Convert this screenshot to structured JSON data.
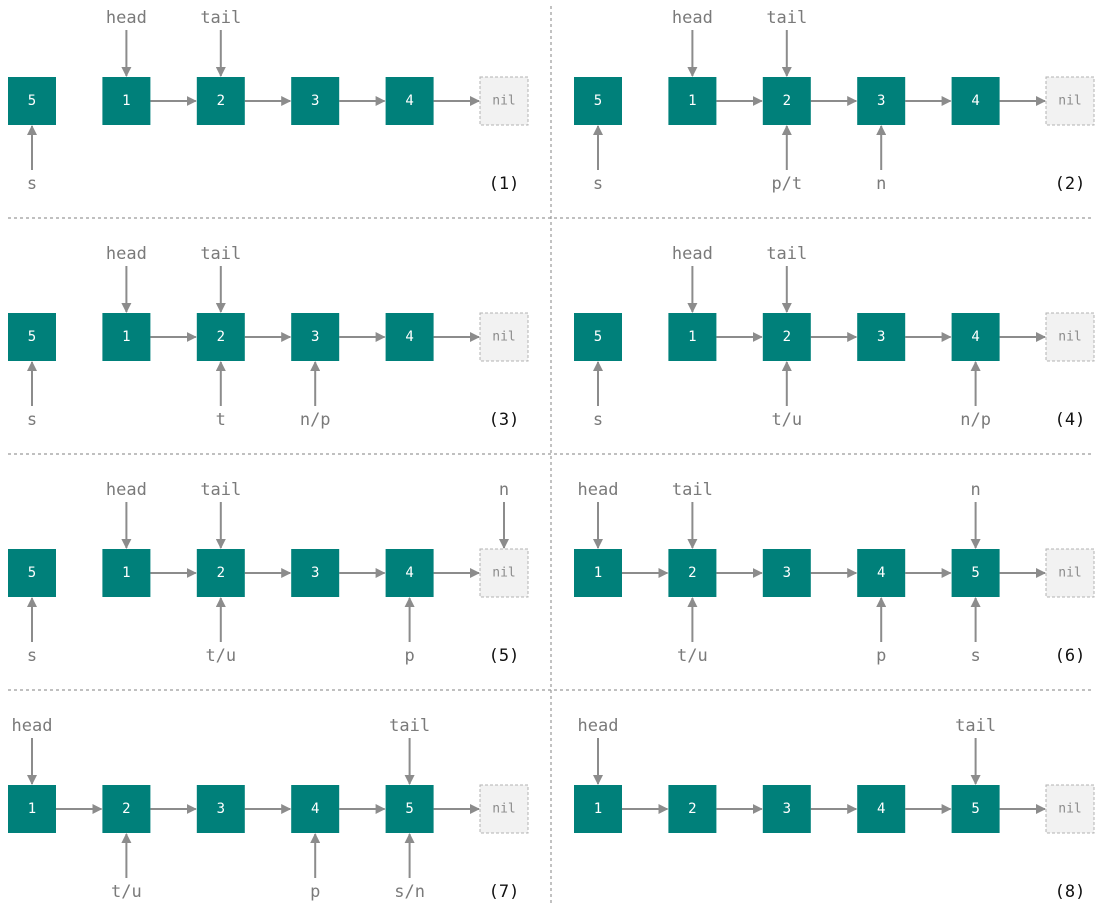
{
  "diagram": {
    "colors": {
      "node_fill": "#00807a",
      "node_text": "#ffffff",
      "nil_fill": "#f2f2f2",
      "nil_border": "#b3b3b3",
      "nil_text": "#8c8c8c",
      "pointer_text": "#7a7a7a",
      "arrow": "#8c8c8c",
      "step_label": "#111111"
    },
    "nil_label": "nil",
    "panels": [
      {
        "step": "(1)",
        "nodes": [
          "5",
          "1",
          "2",
          "3",
          "4"
        ],
        "links": [
          [
            1,
            2
          ],
          [
            2,
            3
          ],
          [
            3,
            4
          ],
          [
            4,
            5
          ]
        ],
        "pointers_above": [
          {
            "node": 1,
            "label": "head"
          },
          {
            "node": 2,
            "label": "tail"
          }
        ],
        "pointers_below": [
          {
            "node": 0,
            "label": "s"
          }
        ]
      },
      {
        "step": "(2)",
        "nodes": [
          "5",
          "1",
          "2",
          "3",
          "4"
        ],
        "links": [
          [
            1,
            2
          ],
          [
            2,
            3
          ],
          [
            3,
            4
          ],
          [
            4,
            5
          ]
        ],
        "pointers_above": [
          {
            "node": 1,
            "label": "head"
          },
          {
            "node": 2,
            "label": "tail"
          }
        ],
        "pointers_below": [
          {
            "node": 0,
            "label": "s"
          },
          {
            "node": 2,
            "label": "p/t"
          },
          {
            "node": 3,
            "label": "n"
          }
        ]
      },
      {
        "step": "(3)",
        "nodes": [
          "5",
          "1",
          "2",
          "3",
          "4"
        ],
        "links": [
          [
            1,
            2
          ],
          [
            2,
            3
          ],
          [
            3,
            4
          ],
          [
            4,
            5
          ]
        ],
        "pointers_above": [
          {
            "node": 1,
            "label": "head"
          },
          {
            "node": 2,
            "label": "tail"
          }
        ],
        "pointers_below": [
          {
            "node": 0,
            "label": "s"
          },
          {
            "node": 2,
            "label": "t"
          },
          {
            "node": 3,
            "label": "n/p"
          }
        ]
      },
      {
        "step": "(4)",
        "nodes": [
          "5",
          "1",
          "2",
          "3",
          "4"
        ],
        "links": [
          [
            1,
            2
          ],
          [
            2,
            3
          ],
          [
            3,
            4
          ],
          [
            4,
            5
          ]
        ],
        "pointers_above": [
          {
            "node": 1,
            "label": "head"
          },
          {
            "node": 2,
            "label": "tail"
          }
        ],
        "pointers_below": [
          {
            "node": 0,
            "label": "s"
          },
          {
            "node": 2,
            "label": "t/u"
          },
          {
            "node": 4,
            "label": "n/p"
          }
        ]
      },
      {
        "step": "(5)",
        "nodes": [
          "5",
          "1",
          "2",
          "3",
          "4"
        ],
        "links": [
          [
            1,
            2
          ],
          [
            2,
            3
          ],
          [
            3,
            4
          ],
          [
            4,
            5
          ]
        ],
        "pointers_above": [
          {
            "node": 1,
            "label": "head"
          },
          {
            "node": 2,
            "label": "tail"
          },
          {
            "node": 5,
            "label": "n"
          }
        ],
        "pointers_below": [
          {
            "node": 0,
            "label": "s"
          },
          {
            "node": 2,
            "label": "t/u"
          },
          {
            "node": 4,
            "label": "p"
          }
        ]
      },
      {
        "step": "(6)",
        "nodes": [
          "1",
          "2",
          "3",
          "4",
          "5"
        ],
        "links": [
          [
            0,
            1
          ],
          [
            1,
            2
          ],
          [
            2,
            3
          ],
          [
            3,
            4
          ],
          [
            4,
            5
          ]
        ],
        "pointers_above": [
          {
            "node": 0,
            "label": "head"
          },
          {
            "node": 1,
            "label": "tail"
          },
          {
            "node": 4,
            "label": "n"
          }
        ],
        "pointers_below": [
          {
            "node": 1,
            "label": "t/u"
          },
          {
            "node": 3,
            "label": "p"
          },
          {
            "node": 4,
            "label": "s"
          }
        ]
      },
      {
        "step": "(7)",
        "nodes": [
          "1",
          "2",
          "3",
          "4",
          "5"
        ],
        "links": [
          [
            0,
            1
          ],
          [
            1,
            2
          ],
          [
            2,
            3
          ],
          [
            3,
            4
          ],
          [
            4,
            5
          ]
        ],
        "pointers_above": [
          {
            "node": 0,
            "label": "head"
          },
          {
            "node": 4,
            "label": "tail"
          }
        ],
        "pointers_below": [
          {
            "node": 1,
            "label": "t/u"
          },
          {
            "node": 3,
            "label": "p"
          },
          {
            "node": 4,
            "label": "s/n"
          }
        ]
      },
      {
        "step": "(8)",
        "nodes": [
          "1",
          "2",
          "3",
          "4",
          "5"
        ],
        "links": [
          [
            0,
            1
          ],
          [
            1,
            2
          ],
          [
            2,
            3
          ],
          [
            3,
            4
          ],
          [
            4,
            5
          ]
        ],
        "pointers_above": [
          {
            "node": 0,
            "label": "head"
          },
          {
            "node": 4,
            "label": "tail"
          }
        ],
        "pointers_below": []
      }
    ]
  }
}
